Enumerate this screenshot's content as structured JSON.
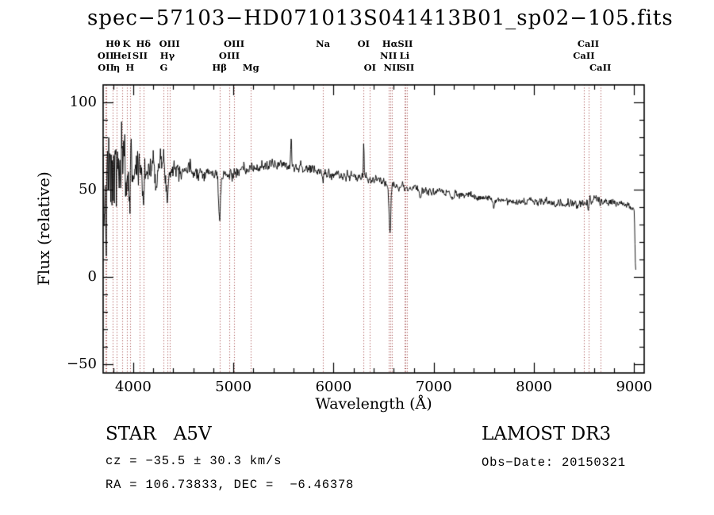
{
  "title": "spec−57103−HD071013S041413B01_sp02−105.fits",
  "axes": {
    "xlabel": "Wavelength (Å)",
    "ylabel": "Flux (relative)",
    "x_range": [
      3700,
      9100
    ],
    "y_range": [
      -55,
      110
    ],
    "x_major_ticks": [
      {
        "v": 4000,
        "label": "4000"
      },
      {
        "v": 5000,
        "label": "5000"
      },
      {
        "v": 6000,
        "label": "6000"
      },
      {
        "v": 7000,
        "label": "7000"
      },
      {
        "v": 8000,
        "label": "8000"
      },
      {
        "v": 9000,
        "label": "9000"
      }
    ],
    "x_minor_step": 200,
    "y_major_ticks": [
      {
        "v": -50,
        "label": "−50"
      },
      {
        "v": 0,
        "label": "0"
      },
      {
        "v": 50,
        "label": "50"
      },
      {
        "v": 100,
        "label": "100"
      }
    ],
    "y_minor_step": 10
  },
  "footer": {
    "class_line": "STAR   A5V",
    "survey": "LAMOST DR3",
    "cz_line": "cz = −35.5 ± 30.3 km/s",
    "obs_date": "Obs−Date: 20150321",
    "ra_dec": "RA = 106.73833, DEC =  −6.46378"
  },
  "chart_data": {
    "type": "line",
    "title": "spec−57103−HD071013S041413B01_sp02−105.fits",
    "xlabel": "Wavelength (Å)",
    "ylabel": "Flux (relative)",
    "xlim": [
      3700,
      9100
    ],
    "ylim": [
      -55,
      110
    ],
    "grid": false,
    "series_color": "#000000",
    "line_marker_color": "#9b3a3a",
    "x_data_range": [
      3700,
      9018
    ],
    "step": 4,
    "seed": 7,
    "continuum": [
      [
        3700,
        35
      ],
      [
        3740,
        45
      ],
      [
        3780,
        55
      ],
      [
        3850,
        60
      ],
      [
        3950,
        62
      ],
      [
        4100,
        63
      ],
      [
        4250,
        64
      ],
      [
        4400,
        63
      ],
      [
        4600,
        61
      ],
      [
        4800,
        59
      ],
      [
        4950,
        58
      ],
      [
        5050,
        60
      ],
      [
        5200,
        62
      ],
      [
        5350,
        64
      ],
      [
        5500,
        65
      ],
      [
        5650,
        63
      ],
      [
        5800,
        61
      ],
      [
        5950,
        59
      ],
      [
        6100,
        58
      ],
      [
        6250,
        57
      ],
      [
        6450,
        55
      ],
      [
        6650,
        52
      ],
      [
        6850,
        50
      ],
      [
        7100,
        48
      ],
      [
        7400,
        46
      ],
      [
        7700,
        44
      ],
      [
        8000,
        43
      ],
      [
        8300,
        42
      ],
      [
        8500,
        42
      ],
      [
        8600,
        45
      ],
      [
        8750,
        43
      ],
      [
        8900,
        42
      ],
      [
        8970,
        40
      ],
      [
        9000,
        36
      ],
      [
        9006,
        25
      ],
      [
        9012,
        8
      ],
      [
        9018,
        2
      ]
    ],
    "features": [
      [
        3934,
        -16,
        5
      ],
      [
        3968,
        -14,
        5
      ],
      [
        4102,
        -20,
        9
      ],
      [
        4227,
        -8,
        4
      ],
      [
        4341,
        -20,
        9
      ],
      [
        4861,
        -26,
        9
      ],
      [
        5577,
        18,
        4
      ],
      [
        5894,
        -6,
        5
      ],
      [
        6301,
        20,
        4
      ],
      [
        6563,
        -27,
        8
      ],
      [
        6867,
        -4,
        8
      ],
      [
        7180,
        -3,
        10
      ],
      [
        7600,
        -5,
        10
      ],
      [
        8498,
        -3,
        4
      ],
      [
        8542,
        -4,
        4
      ],
      [
        8662,
        -4,
        4
      ]
    ],
    "noise_sigma": [
      [
        3700,
        24
      ],
      [
        3770,
        26
      ],
      [
        3830,
        20
      ],
      [
        3900,
        15
      ],
      [
        3980,
        12
      ],
      [
        4080,
        10
      ],
      [
        4200,
        7.5
      ],
      [
        4350,
        5
      ],
      [
        4500,
        3.8
      ],
      [
        4700,
        3.0
      ],
      [
        5000,
        2.6
      ],
      [
        5400,
        2.4
      ],
      [
        5900,
        2.2
      ],
      [
        6400,
        1.9
      ],
      [
        7000,
        1.7
      ],
      [
        7600,
        1.5
      ],
      [
        8300,
        1.7
      ],
      [
        8900,
        1.9
      ],
      [
        9020,
        1.9
      ]
    ],
    "spectral_lines": [
      {
        "label": "OII",
        "wavelength": 3726,
        "row": 2
      },
      {
        "label": "OII",
        "wavelength": 3729,
        "row": 3
      },
      {
        "label": "Hθ",
        "wavelength": 3798,
        "row": 1
      },
      {
        "label": "η",
        "wavelength": 3835,
        "row": 3
      },
      {
        "label": "HeI",
        "wavelength": 3889,
        "row": 2
      },
      {
        "label": "K",
        "wavelength": 3934,
        "row": 1
      },
      {
        "label": "H",
        "wavelength": 3968,
        "row": 3
      },
      {
        "label": "SII",
        "wavelength": 4068,
        "row": 2
      },
      {
        "label": "Hδ",
        "wavelength": 4102,
        "row": 1
      },
      {
        "label": "G",
        "wavelength": 4305,
        "row": 3
      },
      {
        "label": "Hγ",
        "wavelength": 4341,
        "row": 2
      },
      {
        "label": "OIII",
        "wavelength": 4363,
        "row": 1
      },
      {
        "label": "Hβ",
        "wavelength": 4861,
        "row": 3
      },
      {
        "label": "OIII",
        "wavelength": 4959,
        "row": 2
      },
      {
        "label": "OIII",
        "wavelength": 5007,
        "row": 1
      },
      {
        "label": "Mg",
        "wavelength": 5175,
        "row": 3
      },
      {
        "label": "Na",
        "wavelength": 5894,
        "row": 1
      },
      {
        "label": "OI",
        "wavelength": 6300,
        "row": 1
      },
      {
        "label": "OI",
        "wavelength": 6363,
        "row": 3
      },
      {
        "label": "NII",
        "wavelength": 6548,
        "row": 2
      },
      {
        "label": "Hα",
        "wavelength": 6563,
        "row": 1
      },
      {
        "label": "NII",
        "wavelength": 6583,
        "row": 3
      },
      {
        "label": "Li",
        "wavelength": 6708,
        "row": 2
      },
      {
        "label": "SII",
        "wavelength": 6716,
        "row": 1
      },
      {
        "label": "SII",
        "wavelength": 6731,
        "row": 3
      },
      {
        "label": "CaII",
        "wavelength": 8498,
        "row": 2
      },
      {
        "label": "CaII",
        "wavelength": 8542,
        "row": 1
      },
      {
        "label": "CaII",
        "wavelength": 8662,
        "row": 3
      }
    ]
  }
}
